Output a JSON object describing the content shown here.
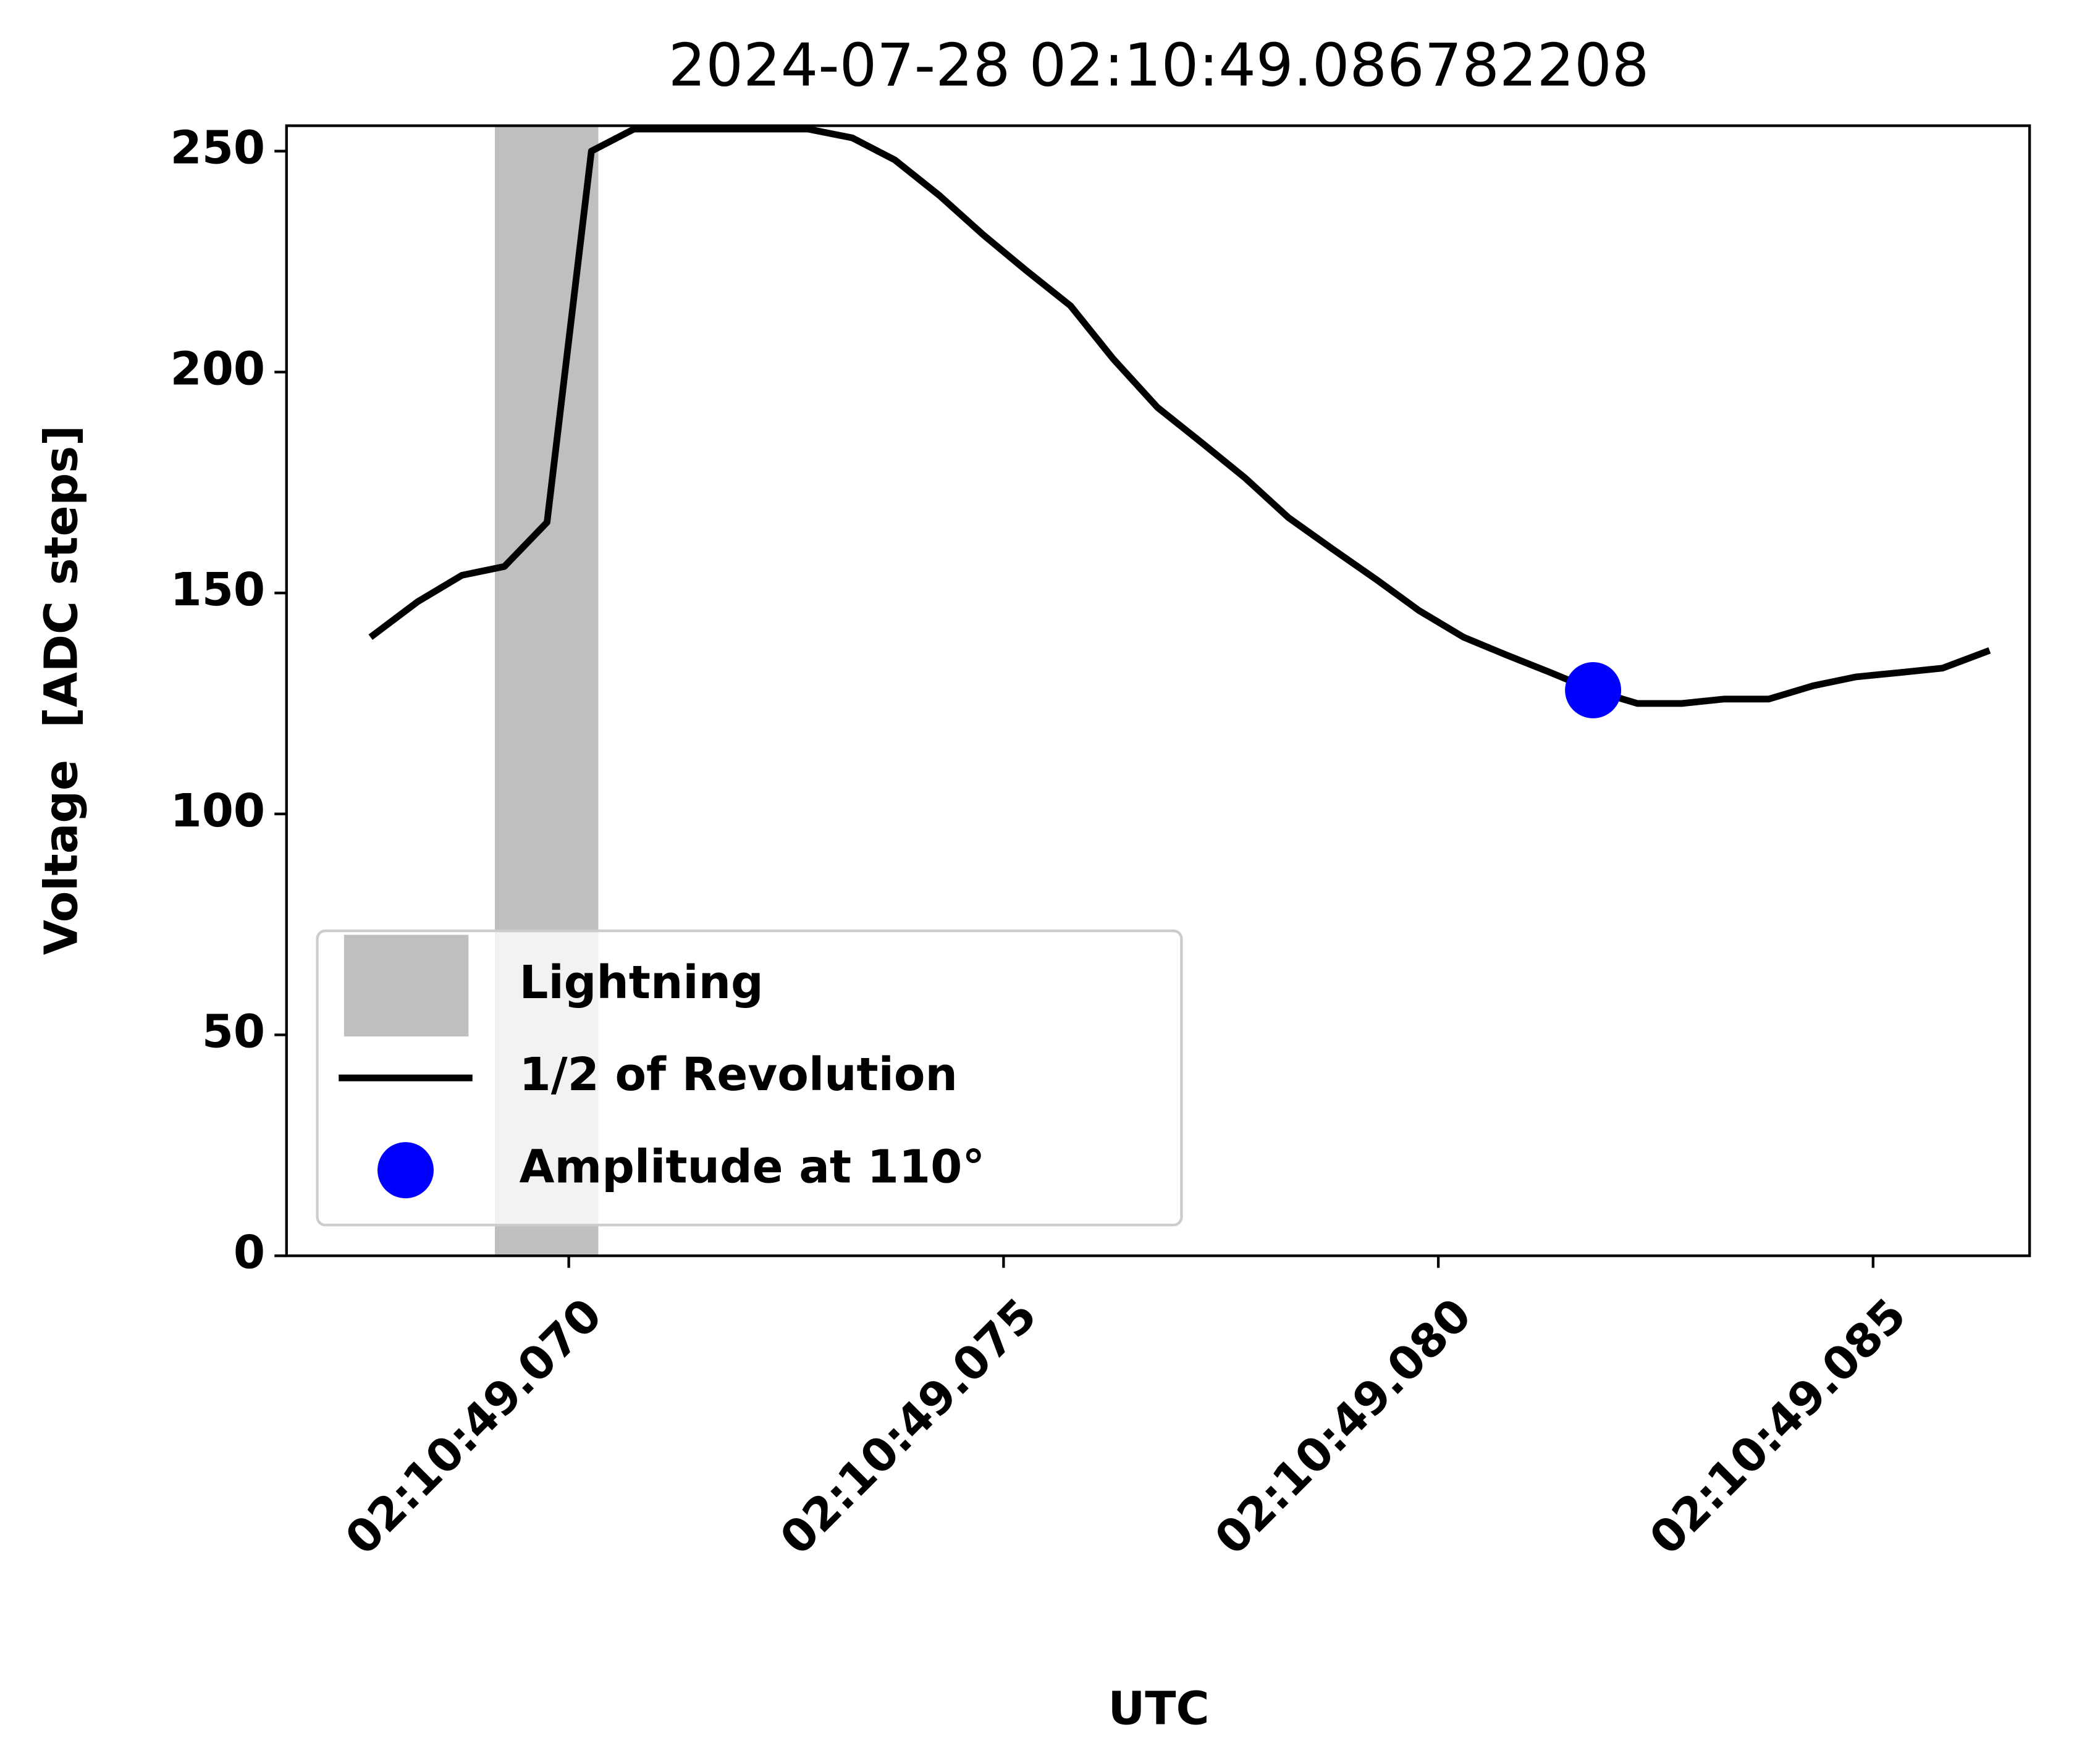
{
  "chart_data": {
    "type": "line",
    "title": "2024-07-28 02:10:49.086782208",
    "xlabel": "UTC",
    "ylabel": "Voltage  [ADC steps]",
    "xlim": [
      "02:10:49.066754",
      "02:10:49.086800"
    ],
    "xticks": [
      "02:10:49.070",
      "02:10:49.075",
      "02:10:49.080",
      "02:10:49.085"
    ],
    "ylim": [
      0,
      255.75
    ],
    "yticks": [
      0,
      50,
      100,
      150,
      200,
      250
    ],
    "legend": "lower left",
    "spans": [
      {
        "name": "Lightning",
        "color": "#bfbfbf",
        "x": [
          "02:10:49.06915",
          "02:10:49.07034"
        ]
      }
    ],
    "series": [
      {
        "name": "1/2 of Revolution",
        "color": "#000000",
        "style": "line",
        "x": [
          "02:10:49.06772",
          "02:10:49.06826",
          "02:10:49.06877",
          "02:10:49.06926",
          "02:10:49.06975",
          "02:10:49.07026",
          "02:10:49.07075",
          "02:10:49.07125",
          "02:10:49.07175",
          "02:10:49.07225",
          "02:10:49.07275",
          "02:10:49.07326",
          "02:10:49.07375",
          "02:10:49.07426",
          "02:10:49.07477",
          "02:10:49.07526",
          "02:10:49.07577",
          "02:10:49.07626",
          "02:10:49.07677",
          "02:10:49.07728",
          "02:10:49.07778",
          "02:10:49.07828",
          "02:10:49.07878",
          "02:10:49.07929",
          "02:10:49.07978",
          "02:10:49.08029",
          "02:10:49.08078",
          "02:10:49.08129",
          "02:10:49.08178",
          "02:10:49.08229",
          "02:10:49.08280",
          "02:10:49.08329",
          "02:10:49.08380",
          "02:10:49.08431",
          "02:10:49.08480",
          "02:10:49.08531",
          "02:10:49.08580",
          "02:10:49.08634"
        ],
        "values": [
          140,
          148,
          154,
          156,
          166,
          250,
          255,
          255,
          255,
          255,
          255,
          253,
          248,
          240,
          231,
          223,
          215,
          203,
          192,
          184,
          176,
          167,
          160,
          153,
          146,
          140,
          136,
          132,
          128,
          125,
          125,
          126,
          126,
          129,
          131,
          132,
          133,
          137
        ]
      },
      {
        "name": "Amplitude at 110°",
        "color": "#0000ff",
        "style": "marker",
        "x": [
          "02:10:49.08178"
        ],
        "values": [
          128
        ]
      }
    ]
  }
}
